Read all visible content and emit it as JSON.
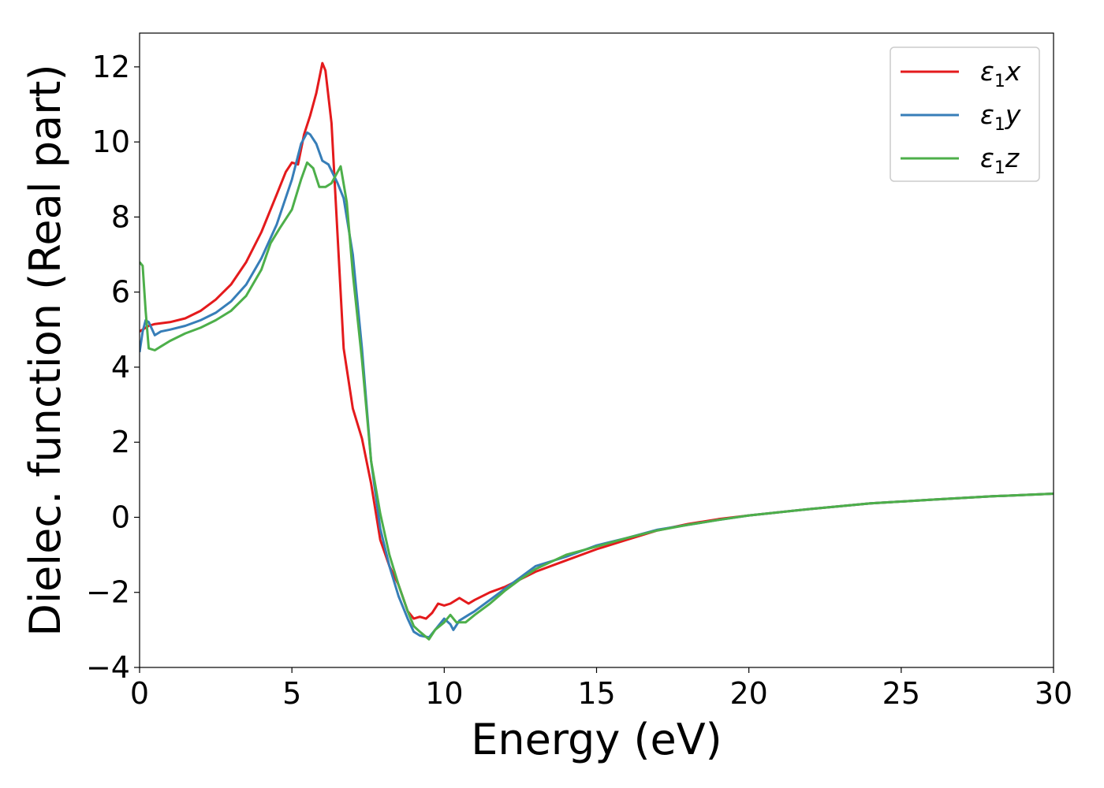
{
  "chart_data": {
    "type": "line",
    "title": "",
    "xlabel": "Energy (eV)",
    "ylabel": "Dielec. function (Real part)",
    "xlim": [
      0,
      30
    ],
    "ylim": [
      -4,
      12.9
    ],
    "xticks": [
      0,
      5,
      10,
      15,
      20,
      25,
      30
    ],
    "xtick_labels": [
      "0",
      "5",
      "10",
      "15",
      "20",
      "25",
      "30"
    ],
    "yticks": [
      -4,
      -2,
      0,
      2,
      4,
      6,
      8,
      10,
      12
    ],
    "ytick_labels": [
      "−4",
      "−2",
      "0",
      "2",
      "4",
      "6",
      "8",
      "10",
      "12"
    ],
    "grid": false,
    "legend_position": "top-right",
    "series": [
      {
        "name": "ε1x",
        "legend_base": "ε",
        "legend_sub": "1",
        "legend_var": "x",
        "color": "#e41a1c",
        "x": [
          0,
          0.3,
          0.5,
          1,
          1.5,
          2,
          2.5,
          3,
          3.5,
          4,
          4.5,
          4.8,
          5.0,
          5.2,
          5.4,
          5.6,
          5.8,
          6.0,
          6.1,
          6.3,
          6.5,
          6.7,
          7.0,
          7.3,
          7.6,
          7.9,
          8.2,
          8.5,
          8.8,
          9.0,
          9.2,
          9.4,
          9.6,
          9.8,
          10.0,
          10.2,
          10.5,
          10.8,
          11.0,
          11.5,
          12.0,
          12.5,
          13,
          14,
          15,
          16,
          17,
          18,
          19,
          20,
          22,
          24,
          26,
          28,
          30
        ],
        "y": [
          4.95,
          5.1,
          5.15,
          5.2,
          5.3,
          5.5,
          5.8,
          6.2,
          6.8,
          7.6,
          8.6,
          9.2,
          9.45,
          9.4,
          10.2,
          10.7,
          11.3,
          12.1,
          11.9,
          10.5,
          7.5,
          4.5,
          2.9,
          2.1,
          0.9,
          -0.6,
          -1.3,
          -1.8,
          -2.5,
          -2.7,
          -2.65,
          -2.7,
          -2.55,
          -2.3,
          -2.35,
          -2.3,
          -2.15,
          -2.3,
          -2.2,
          -2.0,
          -1.85,
          -1.65,
          -1.45,
          -1.15,
          -0.85,
          -0.6,
          -0.35,
          -0.18,
          -0.05,
          0.05,
          0.22,
          0.37,
          0.47,
          0.56,
          0.63
        ]
      },
      {
        "name": "ε1y",
        "legend_base": "ε",
        "legend_sub": "1",
        "legend_var": "y",
        "color": "#377eb8",
        "x": [
          0,
          0.1,
          0.2,
          0.3,
          0.5,
          0.7,
          1,
          1.5,
          2,
          2.5,
          3,
          3.5,
          4,
          4.5,
          5.0,
          5.3,
          5.5,
          5.6,
          5.8,
          6.0,
          6.2,
          6.5,
          6.7,
          7.0,
          7.3,
          7.6,
          7.9,
          8.2,
          8.5,
          8.8,
          9.0,
          9.2,
          9.5,
          9.8,
          10.0,
          10.2,
          10.3,
          10.5,
          10.8,
          11.0,
          11.5,
          12.0,
          12.5,
          13,
          14,
          15,
          16,
          17,
          18,
          19,
          20,
          22,
          24,
          26,
          28,
          30
        ],
        "y": [
          4.4,
          4.95,
          5.25,
          5.2,
          4.85,
          4.95,
          5.0,
          5.1,
          5.25,
          5.45,
          5.75,
          6.2,
          6.9,
          7.8,
          9.0,
          9.95,
          10.25,
          10.2,
          9.95,
          9.5,
          9.4,
          8.9,
          8.5,
          7.0,
          4.5,
          1.5,
          -0.3,
          -1.3,
          -2.1,
          -2.7,
          -3.05,
          -3.15,
          -3.2,
          -2.9,
          -2.7,
          -2.85,
          -3.0,
          -2.75,
          -2.6,
          -2.5,
          -2.2,
          -1.9,
          -1.6,
          -1.3,
          -1.05,
          -0.75,
          -0.55,
          -0.33,
          -0.2,
          -0.07,
          0.05,
          0.22,
          0.37,
          0.47,
          0.56,
          0.63
        ]
      },
      {
        "name": "ε1z",
        "legend_base": "ε",
        "legend_sub": "1",
        "legend_var": "z",
        "color": "#4daf4a",
        "x": [
          0,
          0.1,
          0.2,
          0.3,
          0.5,
          0.7,
          1,
          1.5,
          2,
          2.5,
          3,
          3.5,
          4,
          4.3,
          4.6,
          5.0,
          5.3,
          5.5,
          5.7,
          5.9,
          6.1,
          6.3,
          6.5,
          6.6,
          6.8,
          7.0,
          7.3,
          7.6,
          7.9,
          8.2,
          8.5,
          8.8,
          9.0,
          9.2,
          9.5,
          9.7,
          10.0,
          10.2,
          10.4,
          10.7,
          11.0,
          11.5,
          12.0,
          12.5,
          13,
          14,
          15,
          16,
          17,
          18,
          19,
          20,
          22,
          24,
          26,
          28,
          30
        ],
        "y": [
          6.8,
          6.7,
          5.5,
          4.5,
          4.45,
          4.55,
          4.7,
          4.9,
          5.05,
          5.25,
          5.5,
          5.9,
          6.6,
          7.3,
          7.7,
          8.2,
          9.0,
          9.45,
          9.3,
          8.8,
          8.8,
          8.9,
          9.2,
          9.35,
          8.4,
          6.5,
          4.2,
          1.5,
          0.1,
          -1.0,
          -1.8,
          -2.5,
          -2.9,
          -3.05,
          -3.25,
          -3.0,
          -2.8,
          -2.6,
          -2.8,
          -2.8,
          -2.6,
          -2.3,
          -1.95,
          -1.65,
          -1.38,
          -1.0,
          -0.78,
          -0.55,
          -0.35,
          -0.2,
          -0.07,
          0.05,
          0.22,
          0.37,
          0.47,
          0.56,
          0.63
        ]
      }
    ]
  }
}
